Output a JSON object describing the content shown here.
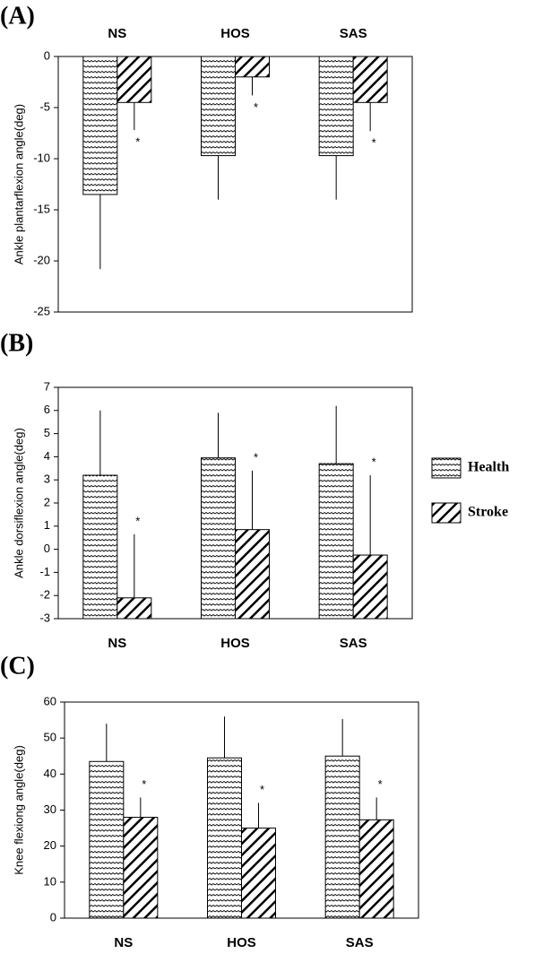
{
  "chart_data": [
    {
      "type": "bar",
      "panel_label": "(A)",
      "ylabel": "Ankle plantarflexion angle(deg)",
      "x_axis_position": "top",
      "categories": [
        "NS",
        "HOS",
        "SAS"
      ],
      "series": [
        {
          "hatch": "waves",
          "color": "#000000",
          "values": [
            -13.5,
            -9.7,
            -9.7
          ],
          "errors": [
            7.3,
            4.3,
            4.3
          ]
        },
        {
          "hatch": "diagonal",
          "color": "#000000",
          "values": [
            -4.5,
            -2,
            -4.5
          ],
          "errors": [
            2.7,
            1.8,
            2.8
          ],
          "significance": [
            "*",
            "*",
            "*"
          ]
        }
      ],
      "ylim": [
        -25,
        0
      ],
      "yticks": [
        0,
        -5,
        -10,
        -15,
        -20,
        -25
      ]
    },
    {
      "type": "bar",
      "panel_label": "(B)",
      "ylabel": "Ankle dorsiflexion angle(deg)",
      "x_axis_position": "bottom",
      "legend": "right",
      "categories": [
        "NS",
        "HOS",
        "SAS"
      ],
      "series": [
        {
          "name": "Health",
          "hatch": "waves",
          "color": "#000000",
          "values": [
            3.2,
            3.95,
            3.7
          ],
          "errors": [
            2.8,
            1.95,
            2.5
          ]
        },
        {
          "name": "Stroke",
          "hatch": "diagonal",
          "color": "#000000",
          "values": [
            -2.1,
            0.85,
            -0.25
          ],
          "errors": [
            2.75,
            2.55,
            3.45
          ],
          "significance": [
            "*",
            "*",
            "*"
          ]
        }
      ],
      "ylim": [
        -3,
        7
      ],
      "yticks": [
        7,
        6,
        5,
        4,
        3,
        2,
        1,
        0,
        -1,
        -2,
        -3
      ]
    },
    {
      "type": "bar",
      "panel_label": "(C)",
      "ylabel": "Knee flexiong angle(deg)",
      "x_axis_position": "bottom",
      "categories": [
        "NS",
        "HOS",
        "SAS"
      ],
      "series": [
        {
          "hatch": "waves",
          "color": "#000000",
          "values": [
            43.5,
            44.5,
            45
          ],
          "errors": [
            10.5,
            11.5,
            10.3
          ]
        },
        {
          "hatch": "diagonal",
          "color": "#000000",
          "values": [
            28,
            25,
            27.3
          ],
          "errors": [
            5.5,
            7,
            6.2
          ],
          "significance": [
            "*",
            "*",
            "*"
          ]
        }
      ],
      "ylim": [
        0,
        60
      ],
      "yticks": [
        60,
        50,
        40,
        30,
        20,
        10,
        0
      ]
    }
  ]
}
